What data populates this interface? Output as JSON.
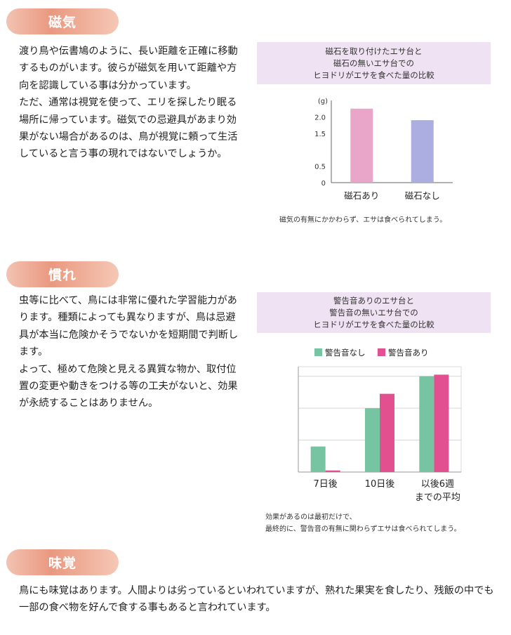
{
  "sections": {
    "magnetism": {
      "heading": "磁気",
      "paragraphs": [
        "渡り鳥や伝書鳩のように、長い距離を正確に移動するものがいます。彼らが磁気を用いて距離や方向を認識している事は分かっています。",
        "ただ、通常は視覚を使って、エリを探したり眠る場所に帰っています。磁気での忌避具があまり効果がない場合があるのは、鳥が視覚に頼って生活していると言う事の現れではないでしょうか。"
      ],
      "chart_title": [
        "磁石を取り付けたエサ台と",
        "磁石の無いエサ台での",
        "ヒヨドリがエサを食べた量の比較"
      ],
      "caption": "磁気の有無にかかわらず、エサは食べられてしまう。"
    },
    "habituation": {
      "heading": "慣れ",
      "paragraphs": [
        "虫等に比べて、鳥には非常に優れた学習能力があります。種類によっても異なりますが、鳥は忌避具が本当に危険かそうでないかを短期間で判断します。",
        "よって、極めて危険と見える異質な物か、取付位置の変更や動きをつける等の工夫がないと、効果が永続することはありません。"
      ],
      "chart_title": [
        "警告音ありのエサ台と",
        "警告音の無いエサ台での",
        "ヒヨドリがエサを食べた量の比較"
      ],
      "caption": [
        "効果があるのは最初だけで、",
        "最終的に、警告音の有無に関わらずエサは食べられてしまう。"
      ]
    },
    "taste": {
      "heading": "味覚",
      "paragraphs": [
        "鳥にも味覚はあります。人間よりは劣っているといわれていますが、熟れた果実を食したり、残飯の中でも一部の食べ物を好んで食する事もあると言われています。"
      ]
    }
  },
  "chart_data": [
    {
      "type": "bar",
      "categories": [
        "磁石あり",
        "磁石なし"
      ],
      "values": [
        2.25,
        1.9
      ],
      "colors": [
        "#e9a6c8",
        "#acaee0"
      ],
      "yunit": "(g)",
      "yticks": [
        "0",
        "0.5",
        "1.5",
        "2.0"
      ],
      "ylim": [
        0,
        2.5
      ],
      "grid": false
    },
    {
      "type": "bar",
      "categories": [
        "7日後",
        "10日後",
        "以後6週までの平均"
      ],
      "series": [
        {
          "name": "警告音なし",
          "values": [
            0.8,
            2.0,
            3.0
          ],
          "color": "#77c4a3"
        },
        {
          "name": "警告音あり",
          "values": [
            0.05,
            2.45,
            3.05
          ],
          "color": "#e2508f"
        }
      ],
      "ylim": [
        0,
        3.3
      ],
      "grid": true,
      "legend": "top"
    }
  ]
}
